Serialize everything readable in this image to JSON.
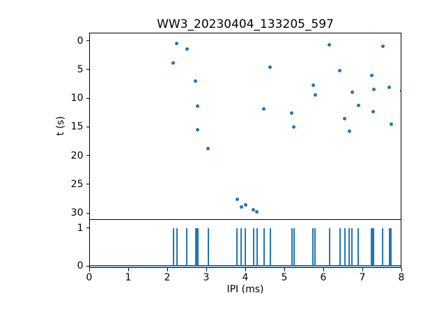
{
  "figure": {
    "title": "WW3_20230404_133205_597",
    "background": "#ffffff",
    "accent_color": "#1f77b4"
  },
  "chart_data": [
    {
      "type": "scatter",
      "title": "WW3_20230404_133205_597",
      "xlabel": "",
      "ylabel": "t (s)",
      "xlim": [
        0,
        8
      ],
      "ylim": [
        -1.4,
        31.2
      ],
      "y_inverted": true,
      "grid": false,
      "legend": false,
      "marker_color": "#1f77b4",
      "yticks": [
        0,
        5,
        10,
        15,
        20,
        25,
        30
      ],
      "points": [
        {
          "x": 2.14,
          "y": 3.8
        },
        {
          "x": 2.23,
          "y": 0.3
        },
        {
          "x": 2.49,
          "y": 1.3
        },
        {
          "x": 2.71,
          "y": 6.9
        },
        {
          "x": 2.75,
          "y": 11.3
        },
        {
          "x": 2.76,
          "y": 15.4
        },
        {
          "x": 3.03,
          "y": 18.7
        },
        {
          "x": 3.77,
          "y": 27.5
        },
        {
          "x": 3.88,
          "y": 28.8
        },
        {
          "x": 3.99,
          "y": 28.5
        },
        {
          "x": 4.19,
          "y": 29.3
        },
        {
          "x": 4.28,
          "y": 29.7
        },
        {
          "x": 4.46,
          "y": 11.8
        },
        {
          "x": 4.62,
          "y": 4.5
        },
        {
          "x": 5.17,
          "y": 12.5
        },
        {
          "x": 5.23,
          "y": 14.9
        },
        {
          "x": 5.72,
          "y": 7.6
        },
        {
          "x": 5.77,
          "y": 9.3
        },
        {
          "x": 6.14,
          "y": 0.6
        },
        {
          "x": 6.41,
          "y": 5.1
        },
        {
          "x": 6.53,
          "y": 13.4
        },
        {
          "x": 6.65,
          "y": 15.6
        },
        {
          "x": 6.72,
          "y": 8.8
        },
        {
          "x": 6.88,
          "y": 11.1
        },
        {
          "x": 7.22,
          "y": 5.9
        },
        {
          "x": 7.25,
          "y": 12.2
        },
        {
          "x": 7.27,
          "y": 8.3
        },
        {
          "x": 7.5,
          "y": 0.8
        },
        {
          "x": 7.67,
          "y": 8.0
        },
        {
          "x": 7.72,
          "y": 14.4
        },
        {
          "x": 7.99,
          "y": 8.6
        }
      ]
    },
    {
      "type": "line",
      "subtype": "spike-train",
      "xlabel": "IPI (ms)",
      "ylabel": "",
      "xlim": [
        0,
        8
      ],
      "ylim": [
        -0.05,
        1.21
      ],
      "grid": false,
      "legend": false,
      "line_color": "#1f77b4",
      "xticks": [
        0,
        1,
        2,
        3,
        4,
        5,
        6,
        7,
        8
      ],
      "yticks": [
        0,
        1
      ],
      "baseline_y": 0,
      "spike_height": 1,
      "spike_x": [
        2.14,
        2.23,
        2.49,
        2.71,
        2.75,
        2.76,
        3.03,
        3.77,
        3.88,
        3.99,
        4.19,
        4.28,
        4.46,
        4.62,
        5.17,
        5.23,
        5.72,
        5.77,
        6.14,
        6.41,
        6.53,
        6.65,
        6.72,
        6.88,
        7.22,
        7.25,
        7.27,
        7.5,
        7.67,
        7.72,
        7.99
      ]
    }
  ]
}
